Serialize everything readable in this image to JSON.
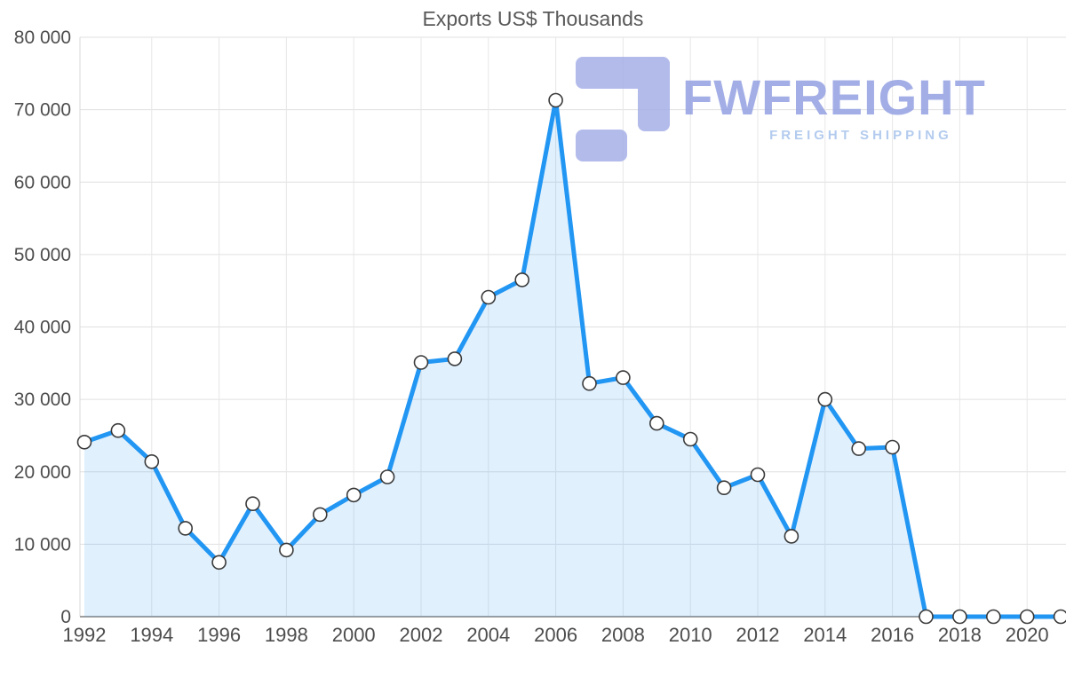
{
  "chart_data": {
    "type": "area",
    "title": "Exports US$ Thousands",
    "xlabel": "",
    "ylabel": "",
    "x": [
      1992,
      1993,
      1994,
      1995,
      1996,
      1997,
      1998,
      1999,
      2000,
      2001,
      2002,
      2003,
      2004,
      2005,
      2006,
      2007,
      2008,
      2009,
      2010,
      2011,
      2012,
      2013,
      2014,
      2015,
      2016,
      2017,
      2018,
      2019,
      2020,
      2021
    ],
    "values": [
      24100,
      25700,
      21400,
      12200,
      7500,
      15600,
      9200,
      14100,
      16800,
      19300,
      35100,
      35600,
      44100,
      46500,
      71300,
      32200,
      33000,
      26700,
      24500,
      17800,
      19600,
      11100,
      30000,
      23200,
      23400,
      0,
      0,
      0,
      0,
      0
    ],
    "ylim": [
      0,
      80000
    ],
    "ytick_step": 10000,
    "xticks": [
      1992,
      1994,
      1996,
      1998,
      2000,
      2002,
      2004,
      2006,
      2008,
      2010,
      2012,
      2014,
      2016,
      2018,
      2020
    ],
    "grid": true,
    "legend": "none",
    "colors": {
      "line": "#2296F3",
      "fill": "rgba(33,150,243,0.14)",
      "marker_fill": "#FFFFFF",
      "marker_stroke": "#3A3A3A",
      "grid_h": "#E0E0E0",
      "grid_v": "#E7E7E7",
      "axis_left": "#D9D9D9",
      "axis_bottom": "#9E9E9E",
      "text": "#4D4D4D"
    }
  },
  "watermark": {
    "brand": "FWFREIGHT",
    "tagline": "FREIGHT SHIPPING",
    "brand_color": "#94A1E2",
    "tagline_color": "#A6C3EC",
    "icon_color": "#A6B0E8"
  }
}
